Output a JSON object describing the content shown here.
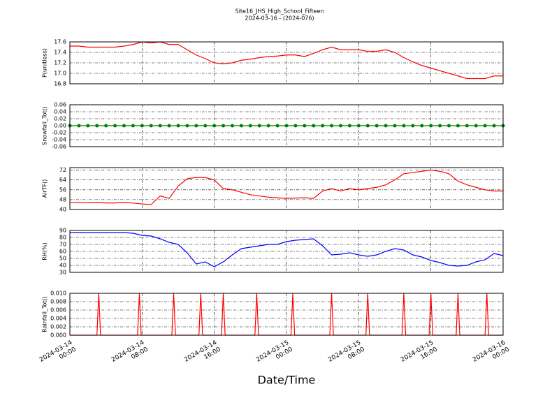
{
  "chart_data": {
    "type": "line",
    "title": "Site16_JHS_High_School_Fifteen",
    "subtitle": "2024-03-16 - (2024-076)",
    "xlabel": "Date/Time",
    "grid": true,
    "xlim": [
      "2024-03-14 00:00",
      "2024-03-16 00:00"
    ],
    "xticks": [
      {
        "value": "2024-03-14 00:00",
        "label": "2024-03-14\n00:00"
      },
      {
        "value": "2024-03-14 08:00",
        "label": "2024-03-14\n08:00"
      },
      {
        "value": "2024-03-14 16:00",
        "label": "2024-03-14\n16:00"
      },
      {
        "value": "2024-03-15 00:00",
        "label": "2024-03-15\n00:00"
      },
      {
        "value": "2024-03-15 08:00",
        "label": "2024-03-15\n08:00"
      },
      {
        "value": "2024-03-15 16:00",
        "label": "2024-03-15\n16:00"
      },
      {
        "value": "2024-03-16 00:00",
        "label": "2024-03-16\n00:00"
      }
    ],
    "x": [
      "2024-03-14 00:00",
      "2024-03-14 01:00",
      "2024-03-14 02:00",
      "2024-03-14 03:00",
      "2024-03-14 04:00",
      "2024-03-14 05:00",
      "2024-03-14 06:00",
      "2024-03-14 07:00",
      "2024-03-14 08:00",
      "2024-03-14 09:00",
      "2024-03-14 10:00",
      "2024-03-14 11:00",
      "2024-03-14 12:00",
      "2024-03-14 13:00",
      "2024-03-14 14:00",
      "2024-03-14 15:00",
      "2024-03-14 16:00",
      "2024-03-14 17:00",
      "2024-03-14 18:00",
      "2024-03-14 19:00",
      "2024-03-14 20:00",
      "2024-03-14 21:00",
      "2024-03-14 22:00",
      "2024-03-14 23:00",
      "2024-03-15 00:00",
      "2024-03-15 01:00",
      "2024-03-15 02:00",
      "2024-03-15 03:00",
      "2024-03-15 04:00",
      "2024-03-15 05:00",
      "2024-03-15 06:00",
      "2024-03-15 07:00",
      "2024-03-15 08:00",
      "2024-03-15 09:00",
      "2024-03-15 10:00",
      "2024-03-15 11:00",
      "2024-03-15 12:00",
      "2024-03-15 13:00",
      "2024-03-15 14:00",
      "2024-03-15 15:00",
      "2024-03-15 16:00",
      "2024-03-15 17:00",
      "2024-03-15 18:00",
      "2024-03-15 19:00",
      "2024-03-15 20:00",
      "2024-03-15 21:00",
      "2024-03-15 22:00",
      "2024-03-15 23:00",
      "2024-03-16 00:00"
    ],
    "panels": [
      {
        "ylabel": "P(unitless)",
        "ylim": [
          16.8,
          17.6
        ],
        "yticks": [
          16.8,
          {
            "value": 17.0,
            "label": "17.0"
          },
          17.2,
          17.4,
          17.6
        ],
        "series": [
          {
            "color": "#ff0000",
            "values": [
              17.52,
              17.52,
              17.5,
              17.5,
              17.5,
              17.5,
              17.52,
              17.55,
              17.6,
              17.58,
              17.6,
              17.55,
              17.55,
              17.45,
              17.35,
              17.28,
              17.2,
              17.18,
              17.2,
              17.25,
              17.27,
              17.3,
              17.32,
              17.33,
              17.35,
              17.35,
              17.32,
              17.38,
              17.45,
              17.5,
              17.45,
              17.45,
              17.45,
              17.42,
              17.42,
              17.45,
              17.4,
              17.3,
              17.22,
              17.15,
              17.1,
              17.05,
              17.0,
              16.95,
              16.9,
              16.9,
              16.9,
              16.95,
              16.95
            ]
          }
        ]
      },
      {
        "ylabel": "Snowfall_Tot()",
        "ylim": [
          -0.06,
          0.06
        ],
        "yticks": [
          -0.06,
          -0.04,
          -0.02,
          {
            "value": 0,
            "label": "0.00"
          },
          0.02,
          0.04,
          0.06
        ],
        "series": [
          {
            "color": "#008000",
            "markers": true,
            "values": [
              0,
              0,
              0,
              0,
              0,
              0,
              0,
              0,
              0,
              0,
              0,
              0,
              0,
              0,
              0,
              0,
              0,
              0,
              0,
              0,
              0,
              0,
              0,
              0,
              0,
              0,
              0,
              0,
              0,
              0,
              0,
              0,
              0,
              0,
              0,
              0,
              0,
              0,
              0,
              0,
              0,
              0,
              0,
              0,
              0,
              0,
              0,
              0,
              0
            ]
          }
        ]
      },
      {
        "ylabel": "AirTF()",
        "ylim": [
          40,
          74
        ],
        "yticks": [
          40,
          48,
          56,
          64,
          72
        ],
        "series": [
          {
            "color": "#ff0000",
            "values": [
              45.5,
              45.7,
              45.5,
              45.8,
              45.3,
              45.3,
              45.8,
              45.2,
              44.5,
              44,
              51,
              49,
              59,
              65,
              66,
              66,
              64,
              57,
              56,
              54,
              52,
              51,
              50,
              49.5,
              49,
              49.3,
              49.5,
              49,
              55,
              57,
              55,
              57,
              56,
              57,
              58,
              60,
              64,
              69,
              70,
              71,
              72,
              71,
              69,
              63,
              60,
              58,
              56,
              55,
              55
            ]
          }
        ]
      },
      {
        "ylabel": "RH(%)",
        "ylim": [
          30,
          90
        ],
        "yticks": [
          30,
          40,
          50,
          60,
          70,
          80,
          90
        ],
        "series": [
          {
            "color": "#0000ff",
            "values": [
              87,
              87,
              87,
              87,
              87,
              87,
              87,
              86,
              83,
              82,
              78,
              73,
              70,
              58,
              42,
              45,
              38,
              45,
              55,
              64,
              66,
              68,
              70,
              70,
              74,
              76,
              77,
              78,
              68,
              55,
              56,
              58,
              55,
              53,
              55,
              60,
              64,
              62,
              55,
              52,
              47,
              44,
              40,
              39,
              40,
              45,
              48,
              57,
              54
            ]
          }
        ]
      },
      {
        "ylabel": "Rainfall_Tot()",
        "ylim": [
          0,
          0.01
        ],
        "yticks": [
          {
            "value": 0,
            "label": "0.000"
          },
          {
            "value": 0.002,
            "label": "0.002"
          },
          {
            "value": 0.004,
            "label": "0.004"
          },
          {
            "value": 0.006,
            "label": "0.006"
          },
          {
            "value": 0.008,
            "label": "0.008"
          },
          {
            "value": 0.01,
            "label": "0.010"
          }
        ],
        "x": [
          "2024-03-14 00:00",
          "2024-03-14 03:00",
          "2024-03-14 03:12",
          "2024-03-14 03:24",
          "2024-03-14 07:30",
          "2024-03-14 07:42",
          "2024-03-14 07:54",
          "2024-03-14 11:18",
          "2024-03-14 11:30",
          "2024-03-14 11:42",
          "2024-03-14 14:18",
          "2024-03-14 14:30",
          "2024-03-14 14:42",
          "2024-03-14 16:48",
          "2024-03-14 17:00",
          "2024-03-14 17:12",
          "2024-03-14 20:30",
          "2024-03-14 20:42",
          "2024-03-14 20:54",
          "2024-03-15 00:30",
          "2024-03-15 00:42",
          "2024-03-15 00:54",
          "2024-03-15 04:48",
          "2024-03-15 05:00",
          "2024-03-15 05:12",
          "2024-03-15 08:48",
          "2024-03-15 09:00",
          "2024-03-15 09:12",
          "2024-03-15 12:48",
          "2024-03-15 13:00",
          "2024-03-15 13:12",
          "2024-03-15 15:48",
          "2024-03-15 16:00",
          "2024-03-15 16:12",
          "2024-03-15 18:48",
          "2024-03-15 19:00",
          "2024-03-15 19:12",
          "2024-03-15 22:00",
          "2024-03-15 22:12",
          "2024-03-15 22:24",
          "2024-03-16 00:00"
        ],
        "series": [
          {
            "color": "#ff0000",
            "values": [
              0,
              0,
              0.01,
              0,
              0,
              0.01,
              0,
              0,
              0.01,
              0,
              0,
              0.01,
              0,
              0,
              0.01,
              0,
              0,
              0.01,
              0,
              0,
              0.01,
              0,
              0,
              0.01,
              0,
              0,
              0.01,
              0,
              0,
              0.01,
              0,
              0,
              0.01,
              0,
              0,
              0.01,
              0,
              0,
              0.01,
              0,
              0
            ]
          }
        ]
      }
    ]
  }
}
